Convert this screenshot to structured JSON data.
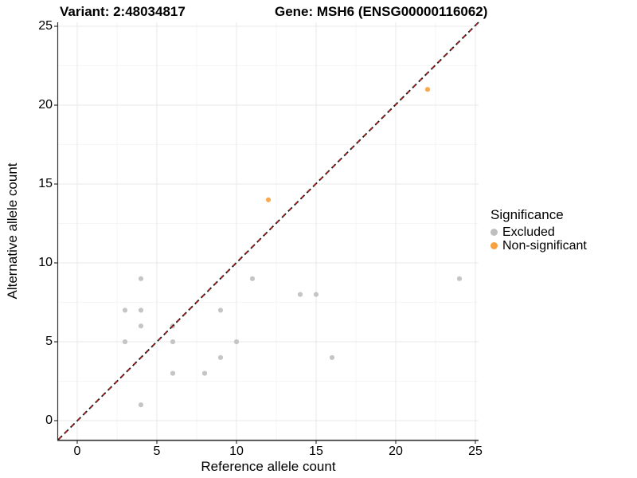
{
  "titles": {
    "left": "Variant: 2:48034817",
    "right": "Gene: MSH6 (ENSG00000116062)"
  },
  "axes": {
    "x": {
      "label": "Reference allele count",
      "ticks": [
        0,
        5,
        10,
        15,
        20,
        25
      ]
    },
    "y": {
      "label": "Alternative allele count",
      "ticks": [
        0,
        5,
        10,
        15,
        20,
        25
      ]
    }
  },
  "legend": {
    "title": "Significance",
    "items": [
      {
        "label": "Excluded",
        "color": "#bfbfbf"
      },
      {
        "label": "Non-significant",
        "color": "#f8a13e"
      }
    ]
  },
  "colors": {
    "grid_major": "#e9e9e9",
    "grid_minor": "#f5f5f5",
    "axis_line": "#333333",
    "ref_line_outer": "#1a1a1a",
    "ref_line_inner": "#a62121"
  },
  "chart_data": {
    "type": "scatter",
    "title_left": "Variant: 2:48034817",
    "title_right": "Gene: MSH6 (ENSG00000116062)",
    "xlabel": "Reference allele count",
    "ylabel": "Alternative allele count",
    "xlim": [
      0,
      25
    ],
    "ylim": [
      0,
      25
    ],
    "grid": true,
    "legend_position": "right",
    "legend_title": "Significance",
    "series": [
      {
        "name": "Excluded",
        "color": "#bfbfbf",
        "points": [
          [
            3,
            5
          ],
          [
            3,
            7
          ],
          [
            4,
            1
          ],
          [
            4,
            6
          ],
          [
            4,
            7
          ],
          [
            4,
            9
          ],
          [
            6,
            3
          ],
          [
            6,
            5
          ],
          [
            6,
            6
          ],
          [
            8,
            3
          ],
          [
            9,
            4
          ],
          [
            9,
            7
          ],
          [
            10,
            5
          ],
          [
            11,
            9
          ],
          [
            14,
            8
          ],
          [
            15,
            8
          ],
          [
            16,
            4
          ],
          [
            24,
            9
          ]
        ]
      },
      {
        "name": "Non-significant",
        "color": "#f8a13e",
        "points": [
          [
            12,
            14
          ],
          [
            22,
            21
          ]
        ]
      }
    ],
    "reference_line": {
      "type": "identity y=x",
      "style": "dashed",
      "colors": [
        "#1a1a1a",
        "#a62121"
      ]
    }
  }
}
